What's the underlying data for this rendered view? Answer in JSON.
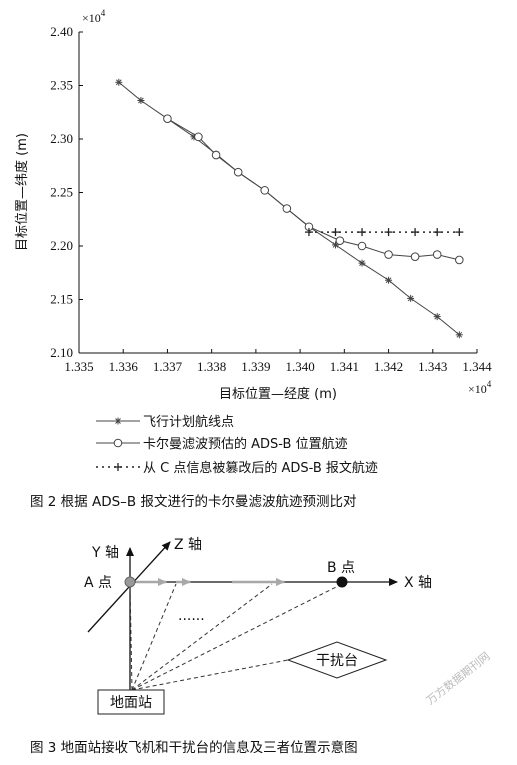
{
  "figure2": {
    "caption": "图 2   根据 ADS–B 报文进行的卡尔曼滤波航迹预测比对",
    "chart_data": {
      "type": "line",
      "xlabel": "目标位置—经度 (m)",
      "ylabel": "目标位置—纬度 (m)",
      "x_scale_label": "×10",
      "x_scale_exp": "4",
      "y_scale_label": "×10",
      "y_scale_exp": "4",
      "xlim": [
        1.335,
        1.344
      ],
      "ylim": [
        2.1,
        2.4
      ],
      "x_ticks": [
        "1.335",
        "1.336",
        "1.337",
        "1.338",
        "1.339",
        "1.340",
        "1.341",
        "1.342",
        "1.343",
        "1.344"
      ],
      "y_ticks": [
        "2.10",
        "2.15",
        "2.20",
        "2.25",
        "2.30",
        "2.35",
        "2.40"
      ],
      "grid": false,
      "legend_position": "below",
      "series": [
        {
          "name": "飞行计划航线点",
          "marker": "star",
          "line": "solid",
          "x": [
            1.3359,
            1.3364,
            1.337,
            1.3376,
            1.3381,
            1.3386,
            1.3392,
            1.3397,
            1.3402,
            1.3408,
            1.3414,
            1.342,
            1.3425,
            1.3431,
            1.3436
          ],
          "y": [
            2.353,
            2.336,
            2.319,
            2.302,
            2.286,
            2.269,
            2.252,
            2.235,
            2.218,
            2.201,
            2.184,
            2.168,
            2.151,
            2.134,
            2.117
          ]
        },
        {
          "name": "卡尔曼滤波预估的 ADS-B 位置航迹",
          "marker": "circle",
          "line": "solid",
          "x": [
            1.337,
            1.3377,
            1.3381,
            1.3386,
            1.3392,
            1.3397,
            1.3402,
            1.3409,
            1.3414,
            1.342,
            1.3426,
            1.3431,
            1.3436
          ],
          "y": [
            2.319,
            2.302,
            2.285,
            2.269,
            2.252,
            2.235,
            2.218,
            2.205,
            2.2,
            2.192,
            2.19,
            2.192,
            2.187
          ]
        },
        {
          "name": "从 C 点信息被篡改后的 ADS-B 报文航迹",
          "marker": "plus",
          "line": "dotted",
          "x": [
            1.3402,
            1.3408,
            1.3414,
            1.342,
            1.3426,
            1.3431,
            1.3436
          ],
          "y": [
            2.213,
            2.213,
            2.213,
            2.213,
            2.213,
            2.213,
            2.213
          ]
        }
      ]
    }
  },
  "figure3": {
    "caption": "图 3   地面站接收飞机和干扰台的信息及三者位置示意图",
    "y_axis_label": "Y 轴",
    "z_axis_label": "Z 轴",
    "x_axis_label": "X 轴",
    "point_a_label": "A 点",
    "point_b_label": "B 点",
    "ellipsis": "······",
    "jammer_label": "干扰台",
    "ground_station_label": "地面站"
  },
  "watermark": "万方数据期刊网"
}
